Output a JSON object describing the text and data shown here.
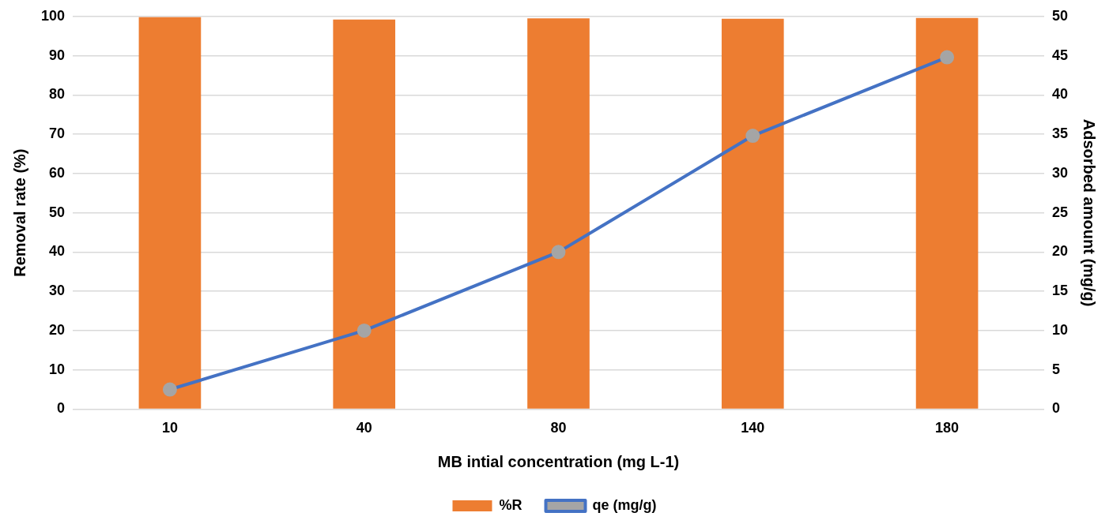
{
  "chart_data": {
    "type": "bar",
    "xlabel": "MB intial concentration (mg L-1)",
    "ylabel": "Removal rate (%)",
    "y2label": "Adsorbed amount (mg/g)",
    "categories": [
      "10",
      "40",
      "80",
      "140",
      "180"
    ],
    "series": [
      {
        "name": "%R",
        "color": "#ed7d31",
        "values": [
          99.8,
          99.2,
          99.5,
          99.4,
          99.6
        ]
      },
      {
        "name": "qe (mg/g)",
        "type": "line",
        "axis": "y2",
        "color": "#4472c4",
        "marker": "circle",
        "values": [
          2.5,
          10,
          20,
          34.8,
          44.8
        ]
      }
    ],
    "ylim": [
      0,
      100
    ],
    "yticks": [
      0,
      10,
      20,
      30,
      40,
      50,
      60,
      70,
      80,
      90,
      100
    ],
    "y2lim": [
      0,
      50
    ],
    "y2ticks": [
      0,
      5,
      10,
      15,
      20,
      25,
      30,
      35,
      40,
      45,
      50
    ],
    "grid": "y",
    "legend": "bottom"
  }
}
